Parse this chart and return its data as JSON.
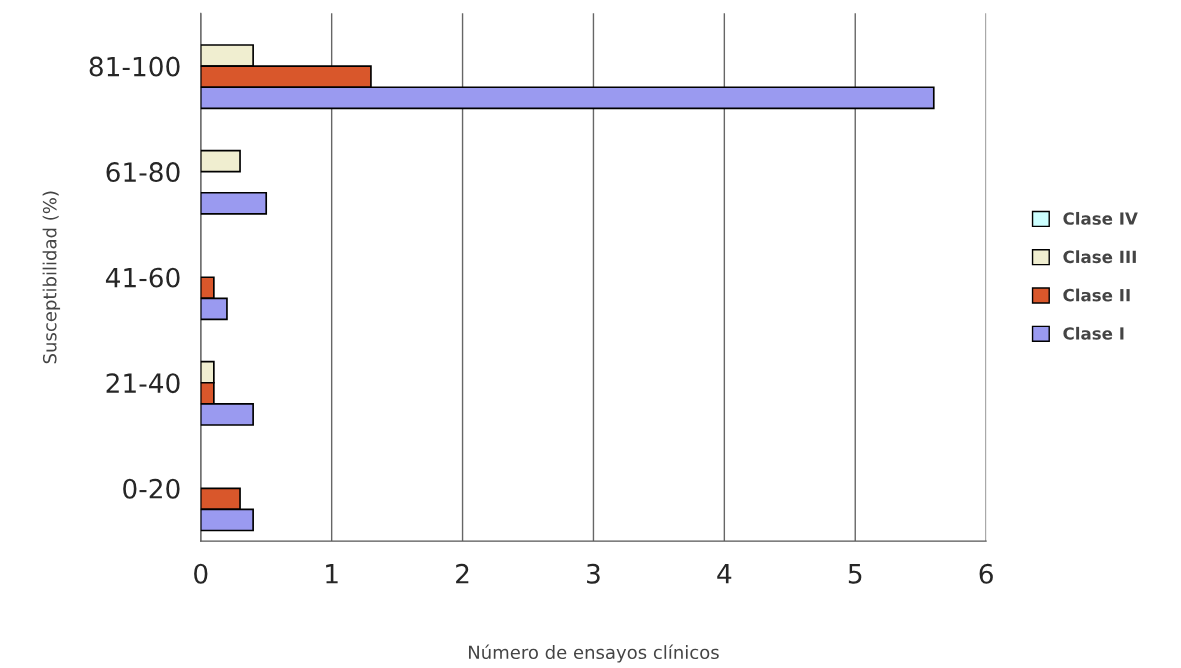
{
  "chart_data": {
    "type": "bar",
    "orientation": "horizontal",
    "xlabel": "Número de ensayos clínicos",
    "ylabel": "Susceptibilidad (%)",
    "categories": [
      "81-100",
      "61-80",
      "41-60",
      "21-40",
      "0-20"
    ],
    "series": [
      {
        "name": "Clase IV",
        "color": "#ccffff",
        "values": [
          null,
          null,
          null,
          null,
          null
        ]
      },
      {
        "name": "Clase III",
        "color": "#f0eed0",
        "values": [
          0.4,
          0.3,
          null,
          0.1,
          null
        ]
      },
      {
        "name": "Clase II",
        "color": "#d9572b",
        "values": [
          1.3,
          null,
          0.1,
          0.1,
          0.3
        ]
      },
      {
        "name": "Clase I",
        "color": "#9a9af0",
        "values": [
          5.6,
          0.5,
          0.2,
          0.4,
          0.4
        ]
      }
    ],
    "xlim": [
      0,
      6
    ],
    "xticks": [
      0,
      1,
      2,
      3,
      4,
      5,
      6
    ],
    "grid": "x",
    "legend": "right"
  }
}
